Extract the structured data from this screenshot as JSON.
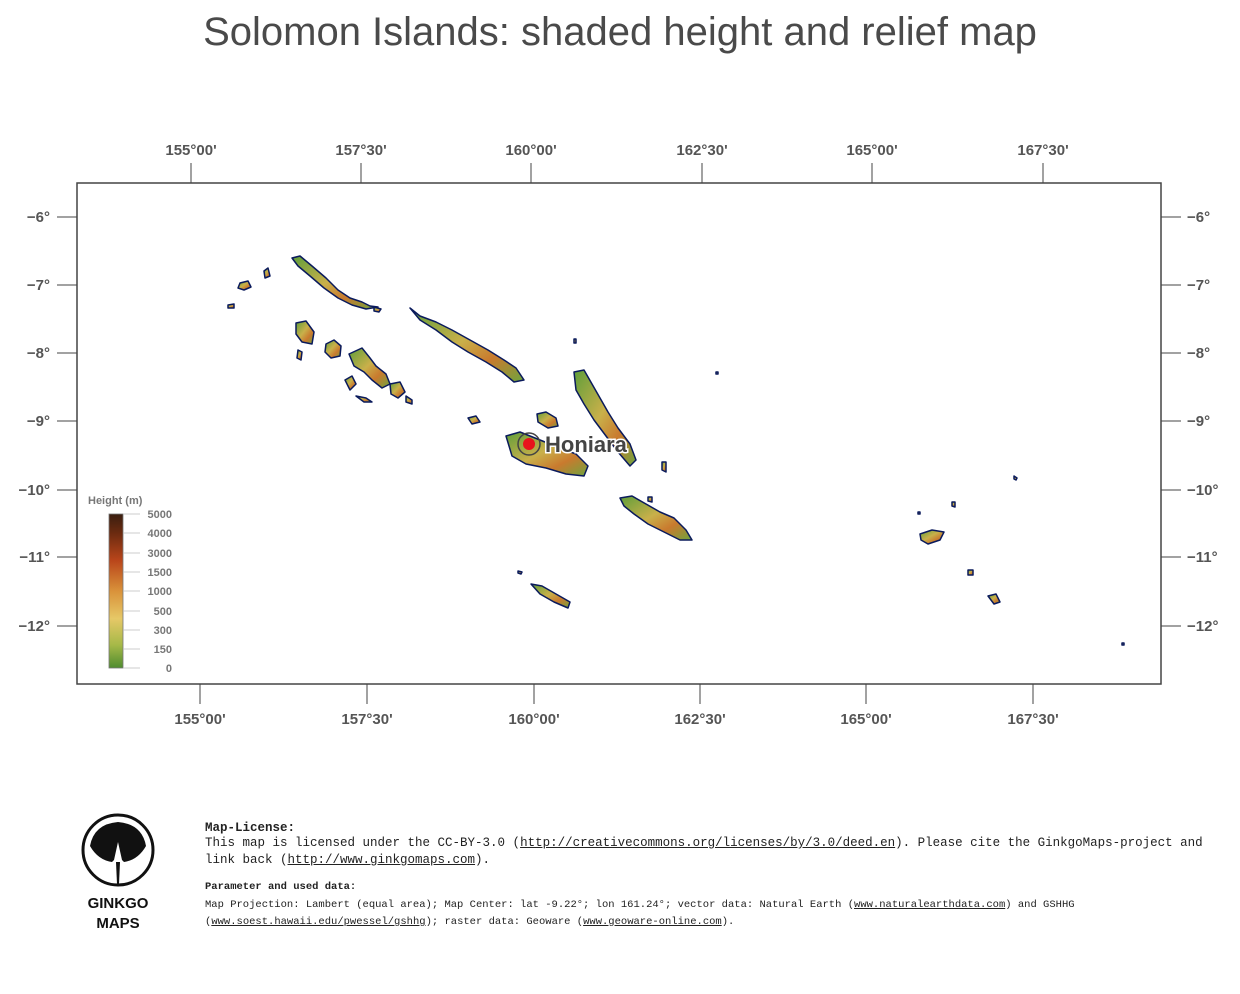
{
  "title": "Solomon Islands: shaded height and relief map",
  "axes": {
    "top_lon_labels": [
      "155°00'",
      "157°30'",
      "160°00'",
      "162°30'",
      "165°00'",
      "167°30'"
    ],
    "bottom_lon_labels": [
      "155°00'",
      "157°30'",
      "160°00'",
      "162°30'",
      "165°00'",
      "167°30'"
    ],
    "lat_labels": [
      "−6°",
      "−7°",
      "−8°",
      "−9°",
      "−10°",
      "−11°",
      "−12°"
    ]
  },
  "legend": {
    "title": "Height  (m)",
    "values": [
      "5000",
      "4000",
      "3000",
      "1500",
      "1000",
      "500",
      "300",
      "150",
      "0"
    ]
  },
  "city": {
    "name": "Honiara",
    "marker_color": "#e8141c"
  },
  "logo": {
    "line1": "GINKGO",
    "line2": "MAPS",
    "icon": "ginkgo-leaf-icon"
  },
  "license": {
    "title": "Map-License:",
    "text1": "This map is licensed under the CC-BY-3.0 (",
    "link1": "http://creativecommons.org/licenses/by/3.0/deed.en",
    "text2": ").  Please cite the GinkgoMaps-project and link back (",
    "link2": "http://www.ginkgomaps.com",
    "text3": ")."
  },
  "parameters": {
    "title": "Parameter and used data:",
    "text1": "Map Projection: Lambert (equal area); Map Center: lat -9.22°; lon 161.24°; vector data: Natural Earth (",
    "link1": "www.naturalearthdata.com",
    "text2": ") and GSHHG (",
    "link2": "www.soest.hawaii.edu/pwessel/gshhg",
    "text3": "); raster data: Geoware (",
    "link3": "www.geoware-online.com",
    "text4": ")."
  },
  "colors": {
    "ocean": "#ffffff",
    "coast": "#0a1a5c",
    "lowland": "#5f9e3a",
    "midland": "#d2b64a",
    "highland": "#a8401a"
  }
}
